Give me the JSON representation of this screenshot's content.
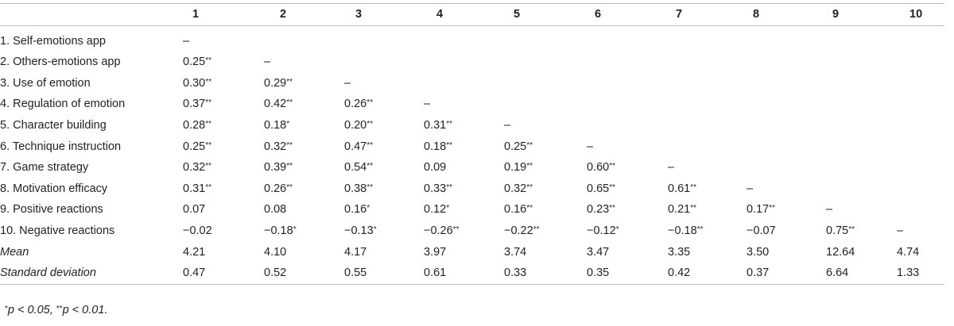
{
  "columns": [
    "1",
    "2",
    "3",
    "4",
    "5",
    "6",
    "7",
    "8",
    "9",
    "10"
  ],
  "rows": [
    {
      "label": "1. Self-emotions app",
      "italic": false,
      "cells": [
        {
          "v": "–",
          "s": ""
        }
      ]
    },
    {
      "label": "2. Others-emotions app",
      "italic": false,
      "cells": [
        {
          "v": "0.25",
          "s": "**"
        },
        {
          "v": "–",
          "s": ""
        }
      ]
    },
    {
      "label": "3. Use of emotion",
      "italic": false,
      "cells": [
        {
          "v": "0.30",
          "s": "**"
        },
        {
          "v": "0.29",
          "s": "**"
        },
        {
          "v": "–",
          "s": ""
        }
      ]
    },
    {
      "label": "4. Regulation of emotion",
      "italic": false,
      "cells": [
        {
          "v": "0.37",
          "s": "**"
        },
        {
          "v": "0.42",
          "s": "**"
        },
        {
          "v": "0.26",
          "s": "**"
        },
        {
          "v": "–",
          "s": ""
        }
      ]
    },
    {
      "label": "5. Character building",
      "italic": false,
      "cells": [
        {
          "v": "0.28",
          "s": "**"
        },
        {
          "v": "0.18",
          "s": "*"
        },
        {
          "v": "0.20",
          "s": "**"
        },
        {
          "v": "0.31",
          "s": "**"
        },
        {
          "v": "–",
          "s": ""
        }
      ]
    },
    {
      "label": "6. Technique instruction",
      "italic": false,
      "cells": [
        {
          "v": "0.25",
          "s": "**"
        },
        {
          "v": "0.32",
          "s": "**"
        },
        {
          "v": "0.47",
          "s": "**"
        },
        {
          "v": "0.18",
          "s": "**"
        },
        {
          "v": "0.25",
          "s": "**"
        },
        {
          "v": "–",
          "s": ""
        }
      ]
    },
    {
      "label": "7. Game strategy",
      "italic": false,
      "cells": [
        {
          "v": "0.32",
          "s": "**"
        },
        {
          "v": "0.39",
          "s": "**"
        },
        {
          "v": "0.54",
          "s": "**"
        },
        {
          "v": "0.09",
          "s": ""
        },
        {
          "v": "0.19",
          "s": "**"
        },
        {
          "v": "0.60",
          "s": "**"
        },
        {
          "v": "–",
          "s": ""
        }
      ]
    },
    {
      "label": "8. Motivation efficacy",
      "italic": false,
      "cells": [
        {
          "v": "0.31",
          "s": "**"
        },
        {
          "v": "0.26",
          "s": "**"
        },
        {
          "v": "0.38",
          "s": "**"
        },
        {
          "v": "0.33",
          "s": "**"
        },
        {
          "v": "0.32",
          "s": "**"
        },
        {
          "v": "0.65",
          "s": "**"
        },
        {
          "v": "0.61",
          "s": "**"
        },
        {
          "v": "–",
          "s": ""
        }
      ]
    },
    {
      "label": "9. Positive reactions",
      "italic": false,
      "cells": [
        {
          "v": "0.07",
          "s": ""
        },
        {
          "v": "0.08",
          "s": ""
        },
        {
          "v": "0.16",
          "s": "*"
        },
        {
          "v": "0.12",
          "s": "*"
        },
        {
          "v": "0.16",
          "s": "**"
        },
        {
          "v": "0.23",
          "s": "**"
        },
        {
          "v": "0.21",
          "s": "**"
        },
        {
          "v": "0.17",
          "s": "**"
        },
        {
          "v": "–",
          "s": ""
        }
      ]
    },
    {
      "label": "10. Negative reactions",
      "italic": false,
      "cells": [
        {
          "v": "−0.02",
          "s": ""
        },
        {
          "v": "−0.18",
          "s": "*"
        },
        {
          "v": "−0.13",
          "s": "*"
        },
        {
          "v": "−0.26",
          "s": "**"
        },
        {
          "v": "−0.22",
          "s": "**"
        },
        {
          "v": "−0.12",
          "s": "*"
        },
        {
          "v": "−0.18",
          "s": "**"
        },
        {
          "v": "−0.07",
          "s": ""
        },
        {
          "v": "0.75",
          "s": "**"
        },
        {
          "v": "–",
          "s": ""
        }
      ]
    },
    {
      "label": "Mean",
      "italic": true,
      "cells": [
        {
          "v": "4.21",
          "s": ""
        },
        {
          "v": "4.10",
          "s": ""
        },
        {
          "v": "4.17",
          "s": ""
        },
        {
          "v": "3.97",
          "s": ""
        },
        {
          "v": "3.74",
          "s": ""
        },
        {
          "v": "3.47",
          "s": ""
        },
        {
          "v": "3.35",
          "s": ""
        },
        {
          "v": "3.50",
          "s": ""
        },
        {
          "v": "12.64",
          "s": ""
        },
        {
          "v": "4.74",
          "s": ""
        }
      ]
    },
    {
      "label": "Standard deviation",
      "italic": true,
      "cells": [
        {
          "v": "0.47",
          "s": ""
        },
        {
          "v": "0.52",
          "s": ""
        },
        {
          "v": "0.55",
          "s": ""
        },
        {
          "v": "0.61",
          "s": ""
        },
        {
          "v": "0.33",
          "s": ""
        },
        {
          "v": "0.35",
          "s": ""
        },
        {
          "v": "0.42",
          "s": ""
        },
        {
          "v": "0.37",
          "s": ""
        },
        {
          "v": "6.64",
          "s": ""
        },
        {
          "v": "1.33",
          "s": ""
        }
      ]
    }
  ],
  "footnote": {
    "star1": "*",
    "text1": "p < 0.05, ",
    "star2": "**",
    "text2": "p < 0.01."
  }
}
